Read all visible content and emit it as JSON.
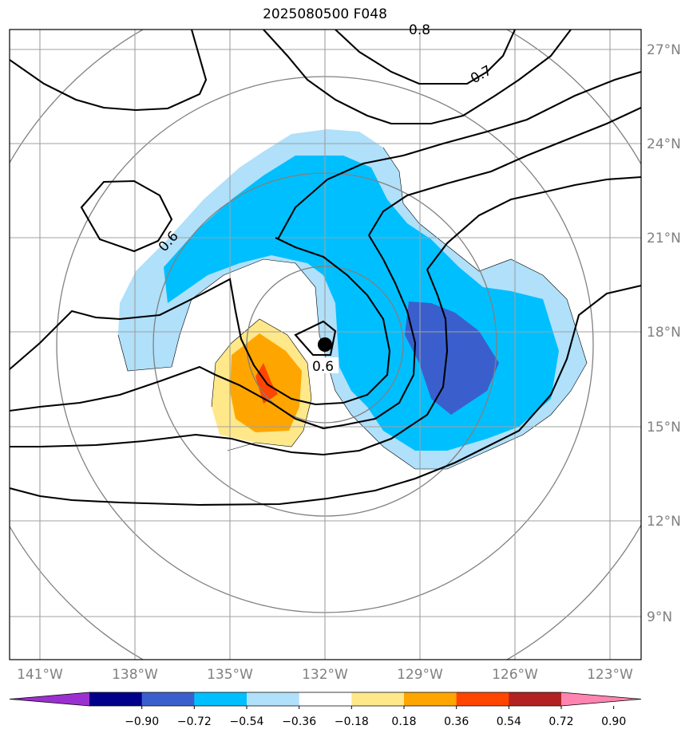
{
  "chart_data": {
    "type": "contour",
    "title": "2025080500 F048",
    "lon_ticks": [
      "141°W",
      "138°W",
      "135°W",
      "132°W",
      "129°W",
      "126°W",
      "123°W"
    ],
    "lat_ticks": [
      "27°N",
      "24°N",
      "21°N",
      "18°N",
      "15°N",
      "12°N",
      "9°N"
    ],
    "grid": true,
    "storm_center": {
      "lon": -132.0,
      "lat": 17.6
    },
    "contour_labels": [
      "0.6",
      "0.6",
      "0.7",
      "0.8"
    ],
    "colorbar": {
      "ticks": [
        "−0.90",
        "−0.72",
        "−0.54",
        "−0.36",
        "−0.18",
        "0.18",
        "0.36",
        "0.54",
        "0.72",
        "0.90"
      ],
      "colors": [
        "#9b30d0",
        "#00008b",
        "#3a5fcd",
        "#00bfff",
        "#b0e0fa",
        "#ffffff",
        "#ffe88a",
        "#ffa500",
        "#ff4500",
        "#b22222",
        "#ff85b0"
      ],
      "extend": "both"
    }
  }
}
